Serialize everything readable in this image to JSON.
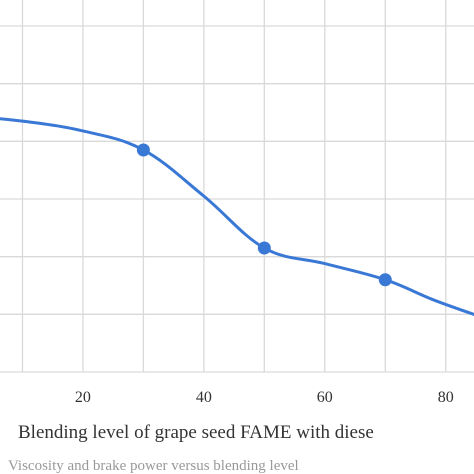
{
  "chart_data": {
    "type": "line",
    "xlabel": "Blending level of grape seed FAME with diese",
    "x_ticks": [
      20,
      40,
      60,
      80
    ],
    "xlim": [
      0,
      86
    ],
    "ylim": [
      0,
      6
    ],
    "grid": true,
    "series_color": "#3a78d6",
    "curve": {
      "x": [
        0,
        10,
        20,
        30,
        40,
        50,
        60,
        70,
        78,
        86
      ],
      "y": [
        4.45,
        4.35,
        4.18,
        3.85,
        3.05,
        2.15,
        1.88,
        1.6,
        1.25,
        0.95
      ]
    },
    "markers": {
      "x": [
        30,
        50,
        70
      ],
      "y": [
        3.85,
        2.15,
        1.6
      ]
    }
  },
  "caption": "Viscosity and brake power versus blending level"
}
